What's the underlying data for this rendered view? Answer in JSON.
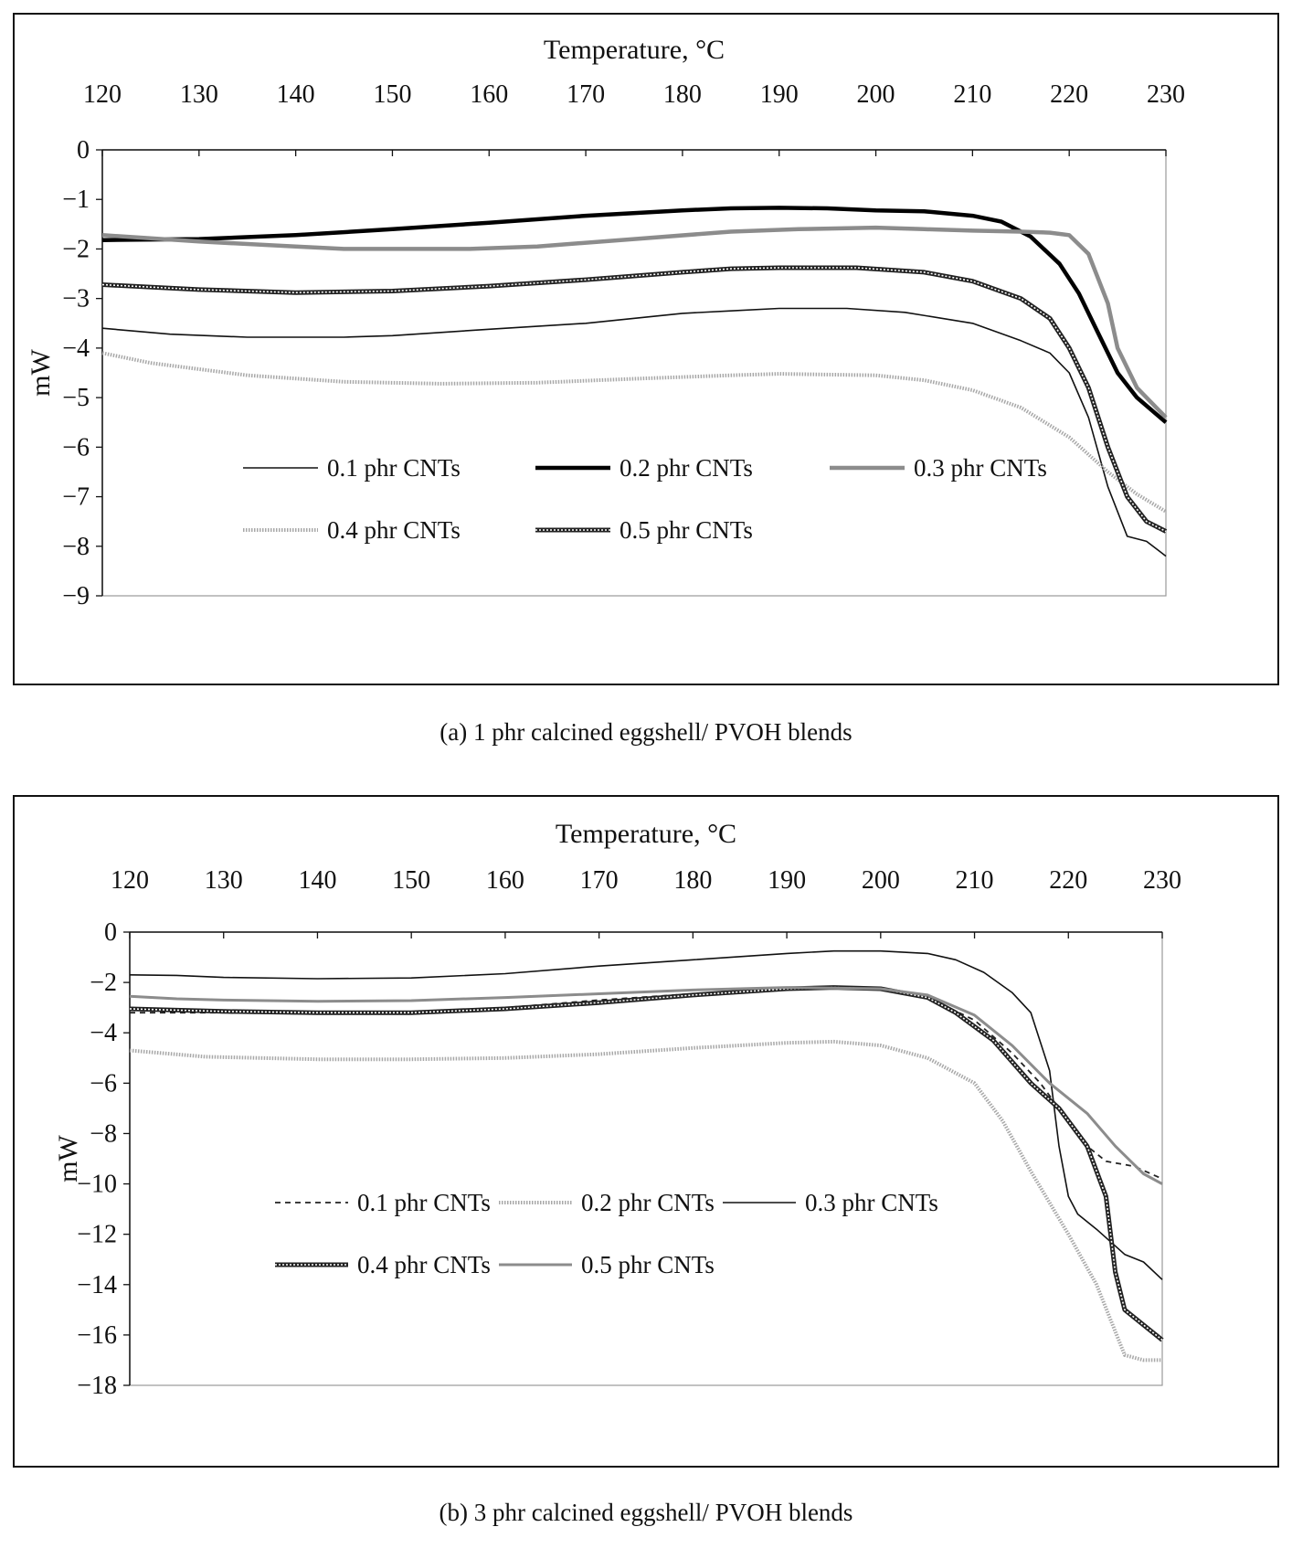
{
  "captions": {
    "a": "(a)  1 phr calcined eggshell/ PVOH blends",
    "b": "(b) 3 phr calcined eggshell/ PVOH blends"
  },
  "chart_data": [
    {
      "type": "line",
      "id": "a",
      "xlabel": "Temperature, °C",
      "ylabel": "mW",
      "xlim": [
        120,
        230
      ],
      "ylim": [
        -9,
        0
      ],
      "xticks": [
        120,
        130,
        140,
        150,
        160,
        170,
        180,
        190,
        200,
        210,
        220,
        230
      ],
      "yticks": [
        0,
        -1,
        -2,
        -3,
        -4,
        -5,
        -6,
        -7,
        -8,
        -9
      ],
      "x_axis_position": "top",
      "grid": false,
      "legend": {
        "placement": "inside-bottom",
        "columns": 3
      },
      "series": [
        {
          "name": "0.1 phr CNTs",
          "color": "#111111",
          "style": "thin",
          "points": [
            [
              120,
              -3.6
            ],
            [
              127,
              -3.72
            ],
            [
              135,
              -3.78
            ],
            [
              145,
              -3.78
            ],
            [
              150,
              -3.75
            ],
            [
              160,
              -3.62
            ],
            [
              170,
              -3.5
            ],
            [
              180,
              -3.3
            ],
            [
              185,
              -3.25
            ],
            [
              190,
              -3.2
            ],
            [
              197,
              -3.2
            ],
            [
              203,
              -3.28
            ],
            [
              210,
              -3.5
            ],
            [
              215,
              -3.85
            ],
            [
              218,
              -4.1
            ],
            [
              220,
              -4.5
            ],
            [
              222,
              -5.4
            ],
            [
              224,
              -6.8
            ],
            [
              226,
              -7.8
            ],
            [
              228,
              -7.9
            ],
            [
              230,
              -8.2
            ]
          ]
        },
        {
          "name": "0.2 phr CNTs",
          "color": "#000000",
          "style": "thick",
          "points": [
            [
              120,
              -1.82
            ],
            [
              130,
              -1.8
            ],
            [
              140,
              -1.72
            ],
            [
              150,
              -1.6
            ],
            [
              160,
              -1.47
            ],
            [
              170,
              -1.33
            ],
            [
              180,
              -1.22
            ],
            [
              185,
              -1.18
            ],
            [
              190,
              -1.17
            ],
            [
              195,
              -1.18
            ],
            [
              200,
              -1.22
            ],
            [
              205,
              -1.24
            ],
            [
              210,
              -1.33
            ],
            [
              213,
              -1.45
            ],
            [
              216,
              -1.75
            ],
            [
              219,
              -2.3
            ],
            [
              221,
              -2.9
            ],
            [
              223,
              -3.7
            ],
            [
              225,
              -4.5
            ],
            [
              227,
              -5.0
            ],
            [
              230,
              -5.5
            ]
          ]
        },
        {
          "name": "0.3 phr CNTs",
          "color": "#8c8c8c",
          "style": "thick",
          "points": [
            [
              120,
              -1.72
            ],
            [
              130,
              -1.85
            ],
            [
              140,
              -1.95
            ],
            [
              145,
              -2.0
            ],
            [
              150,
              -2.0
            ],
            [
              158,
              -2.0
            ],
            [
              165,
              -1.95
            ],
            [
              175,
              -1.8
            ],
            [
              185,
              -1.65
            ],
            [
              192,
              -1.6
            ],
            [
              200,
              -1.57
            ],
            [
              205,
              -1.6
            ],
            [
              210,
              -1.63
            ],
            [
              215,
              -1.65
            ],
            [
              218,
              -1.67
            ],
            [
              220,
              -1.72
            ],
            [
              222,
              -2.1
            ],
            [
              224,
              -3.1
            ],
            [
              225,
              -4.0
            ],
            [
              227,
              -4.8
            ],
            [
              230,
              -5.4
            ]
          ]
        },
        {
          "name": "0.4 phr CNTs",
          "color": "#a8a8a8",
          "style": "dotted",
          "points": [
            [
              120,
              -4.1
            ],
            [
              125,
              -4.3
            ],
            [
              135,
              -4.55
            ],
            [
              145,
              -4.68
            ],
            [
              155,
              -4.72
            ],
            [
              165,
              -4.7
            ],
            [
              175,
              -4.62
            ],
            [
              185,
              -4.55
            ],
            [
              190,
              -4.52
            ],
            [
              200,
              -4.55
            ],
            [
              205,
              -4.65
            ],
            [
              210,
              -4.85
            ],
            [
              215,
              -5.2
            ],
            [
              220,
              -5.8
            ],
            [
              224,
              -6.5
            ],
            [
              227,
              -6.95
            ],
            [
              230,
              -7.3
            ]
          ]
        },
        {
          "name": "0.5 phr CNTs",
          "color": "#222222",
          "style": "hatched",
          "points": [
            [
              120,
              -2.72
            ],
            [
              130,
              -2.82
            ],
            [
              140,
              -2.88
            ],
            [
              150,
              -2.85
            ],
            [
              160,
              -2.75
            ],
            [
              170,
              -2.62
            ],
            [
              180,
              -2.47
            ],
            [
              185,
              -2.4
            ],
            [
              190,
              -2.38
            ],
            [
              198,
              -2.38
            ],
            [
              205,
              -2.47
            ],
            [
              210,
              -2.65
            ],
            [
              215,
              -3.0
            ],
            [
              218,
              -3.4
            ],
            [
              220,
              -4.0
            ],
            [
              222,
              -4.8
            ],
            [
              224,
              -6.0
            ],
            [
              226,
              -7.0
            ],
            [
              228,
              -7.5
            ],
            [
              230,
              -7.7
            ]
          ]
        }
      ]
    },
    {
      "type": "line",
      "id": "b",
      "xlabel": "Temperature, °C",
      "ylabel": "mW",
      "xlim": [
        120,
        230
      ],
      "ylim": [
        -18,
        0
      ],
      "xticks": [
        120,
        130,
        140,
        150,
        160,
        170,
        180,
        190,
        200,
        210,
        220,
        230
      ],
      "yticks": [
        0,
        -2,
        -4,
        -6,
        -8,
        -10,
        -12,
        -14,
        -16,
        -18
      ],
      "x_axis_position": "top",
      "grid": false,
      "legend": {
        "placement": "inside-bottom",
        "columns": 3
      },
      "series": [
        {
          "name": "0.1 phr CNTs",
          "color": "#222222",
          "style": "dashed",
          "points": [
            [
              120,
              -3.2
            ],
            [
              130,
              -3.2
            ],
            [
              140,
              -3.25
            ],
            [
              150,
              -3.2
            ],
            [
              160,
              -3.0
            ],
            [
              170,
              -2.7
            ],
            [
              180,
              -2.45
            ],
            [
              190,
              -2.25
            ],
            [
              195,
              -2.2
            ],
            [
              200,
              -2.25
            ],
            [
              205,
              -2.6
            ],
            [
              210,
              -3.5
            ],
            [
              214,
              -4.8
            ],
            [
              217,
              -6.0
            ],
            [
              220,
              -7.5
            ],
            [
              222,
              -8.5
            ],
            [
              224,
              -9.1
            ],
            [
              227,
              -9.3
            ],
            [
              230,
              -9.8
            ]
          ]
        },
        {
          "name": "0.2 phr CNTs",
          "color": "#a8a8a8",
          "style": "dotted",
          "points": [
            [
              120,
              -4.7
            ],
            [
              128,
              -4.95
            ],
            [
              140,
              -5.05
            ],
            [
              150,
              -5.05
            ],
            [
              160,
              -5.0
            ],
            [
              170,
              -4.85
            ],
            [
              180,
              -4.6
            ],
            [
              190,
              -4.4
            ],
            [
              195,
              -4.35
            ],
            [
              200,
              -4.5
            ],
            [
              205,
              -5.0
            ],
            [
              210,
              -6.0
            ],
            [
              213,
              -7.5
            ],
            [
              216,
              -9.5
            ],
            [
              220,
              -12.0
            ],
            [
              223,
              -14.0
            ],
            [
              226,
              -16.8
            ],
            [
              228,
              -17.0
            ],
            [
              230,
              -17.0
            ]
          ]
        },
        {
          "name": "0.3 phr CNTs",
          "color": "#111111",
          "style": "thin",
          "points": [
            [
              120,
              -1.7
            ],
            [
              125,
              -1.72
            ],
            [
              130,
              -1.8
            ],
            [
              140,
              -1.85
            ],
            [
              150,
              -1.82
            ],
            [
              160,
              -1.65
            ],
            [
              170,
              -1.35
            ],
            [
              180,
              -1.1
            ],
            [
              190,
              -0.85
            ],
            [
              195,
              -0.75
            ],
            [
              200,
              -0.75
            ],
            [
              205,
              -0.85
            ],
            [
              208,
              -1.1
            ],
            [
              211,
              -1.6
            ],
            [
              214,
              -2.4
            ],
            [
              216,
              -3.2
            ],
            [
              218,
              -5.5
            ],
            [
              219,
              -8.5
            ],
            [
              220,
              -10.5
            ],
            [
              221,
              -11.2
            ],
            [
              223,
              -11.8
            ],
            [
              226,
              -12.8
            ],
            [
              228,
              -13.1
            ],
            [
              230,
              -13.8
            ]
          ]
        },
        {
          "name": "0.4 phr CNTs",
          "color": "#222222",
          "style": "hatched",
          "points": [
            [
              120,
              -3.05
            ],
            [
              130,
              -3.15
            ],
            [
              140,
              -3.2
            ],
            [
              150,
              -3.2
            ],
            [
              160,
              -3.05
            ],
            [
              170,
              -2.8
            ],
            [
              180,
              -2.5
            ],
            [
              190,
              -2.25
            ],
            [
              195,
              -2.2
            ],
            [
              200,
              -2.25
            ],
            [
              205,
              -2.6
            ],
            [
              208,
              -3.2
            ],
            [
              212,
              -4.3
            ],
            [
              216,
              -6.0
            ],
            [
              219,
              -7.0
            ],
            [
              222,
              -8.5
            ],
            [
              224,
              -10.5
            ],
            [
              225,
              -13.5
            ],
            [
              226,
              -15.0
            ],
            [
              228,
              -15.6
            ],
            [
              230,
              -16.2
            ]
          ]
        },
        {
          "name": "0.5 phr CNTs",
          "color": "#8c8c8c",
          "style": "medium",
          "points": [
            [
              120,
              -2.55
            ],
            [
              125,
              -2.65
            ],
            [
              130,
              -2.7
            ],
            [
              140,
              -2.75
            ],
            [
              150,
              -2.72
            ],
            [
              160,
              -2.6
            ],
            [
              170,
              -2.45
            ],
            [
              180,
              -2.3
            ],
            [
              190,
              -2.2
            ],
            [
              200,
              -2.25
            ],
            [
              205,
              -2.5
            ],
            [
              210,
              -3.3
            ],
            [
              214,
              -4.5
            ],
            [
              218,
              -6.0
            ],
            [
              222,
              -7.2
            ],
            [
              225,
              -8.5
            ],
            [
              228,
              -9.6
            ],
            [
              230,
              -10.0
            ]
          ]
        }
      ]
    }
  ]
}
